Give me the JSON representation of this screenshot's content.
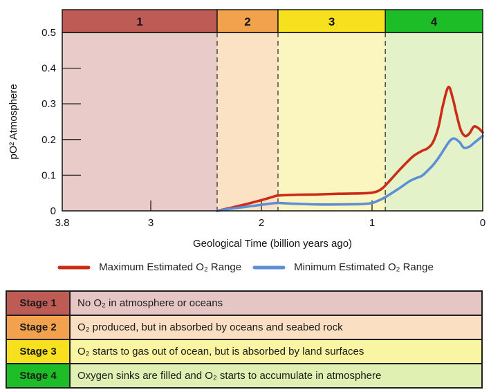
{
  "colors": {
    "boundary_dash": "#56544a",
    "axis": "#1a1a1a"
  },
  "chart_data": {
    "type": "line",
    "title": "",
    "xlabel": "Geological Time (billion years ago)",
    "ylabel": "pO² Atmosphere",
    "x_range": [
      3.8,
      0
    ],
    "y_range": [
      0,
      0.5
    ],
    "grid": false,
    "legend_position": "bottom",
    "x_ticks": [
      {
        "v": 3.8,
        "label": "3.8"
      },
      {
        "v": 3,
        "label": "3"
      },
      {
        "v": 2,
        "label": "2"
      },
      {
        "v": 1,
        "label": "1"
      },
      {
        "v": 0,
        "label": "0"
      }
    ],
    "y_ticks": [
      {
        "v": 0,
        "label": "0"
      },
      {
        "v": 0.1,
        "label": "0.1"
      },
      {
        "v": 0.2,
        "label": "0.2"
      },
      {
        "v": 0.3,
        "label": "0.3"
      },
      {
        "v": 0.4,
        "label": "0.4"
      },
      {
        "v": 0.5,
        "label": "0.5"
      }
    ],
    "stages": [
      {
        "label": "1",
        "from": 3.8,
        "to": 2.4,
        "header_color": "#bf5b55",
        "bg_color": "#e9cbc9"
      },
      {
        "label": "2",
        "from": 2.4,
        "to": 1.85,
        "header_color": "#f2a24d",
        "bg_color": "#fbe2c4"
      },
      {
        "label": "3",
        "from": 1.85,
        "to": 0.88,
        "header_color": "#f7e01e",
        "bg_color": "#fbf5c0"
      },
      {
        "label": "4",
        "from": 0.88,
        "to": 0,
        "header_color": "#1cbd27",
        "bg_color": "#e4f2c9"
      }
    ],
    "series": [
      {
        "name": "Maximum Estimated O₂ Range",
        "color": "#cc2c17",
        "points": [
          [
            2.4,
            0.0
          ],
          [
            2.3,
            0.007
          ],
          [
            2.15,
            0.018
          ],
          [
            2.0,
            0.03
          ],
          [
            1.9,
            0.039
          ],
          [
            1.85,
            0.043
          ],
          [
            1.7,
            0.045
          ],
          [
            1.5,
            0.046
          ],
          [
            1.3,
            0.048
          ],
          [
            1.1,
            0.049
          ],
          [
            1.0,
            0.051
          ],
          [
            0.95,
            0.055
          ],
          [
            0.9,
            0.065
          ],
          [
            0.83,
            0.088
          ],
          [
            0.76,
            0.112
          ],
          [
            0.68,
            0.138
          ],
          [
            0.62,
            0.155
          ],
          [
            0.55,
            0.168
          ],
          [
            0.5,
            0.175
          ],
          [
            0.45,
            0.192
          ],
          [
            0.4,
            0.235
          ],
          [
            0.36,
            0.295
          ],
          [
            0.31,
            0.347
          ],
          [
            0.27,
            0.315
          ],
          [
            0.24,
            0.275
          ],
          [
            0.2,
            0.228
          ],
          [
            0.16,
            0.21
          ],
          [
            0.12,
            0.217
          ],
          [
            0.08,
            0.236
          ],
          [
            0.04,
            0.232
          ],
          [
            0.0,
            0.22
          ]
        ]
      },
      {
        "name": "Minimum Estimated O₂ Range",
        "color": "#5e8fd5",
        "points": [
          [
            2.4,
            0.0
          ],
          [
            2.3,
            0.005
          ],
          [
            2.15,
            0.011
          ],
          [
            2.0,
            0.017
          ],
          [
            1.9,
            0.021
          ],
          [
            1.85,
            0.022
          ],
          [
            1.7,
            0.02
          ],
          [
            1.5,
            0.018
          ],
          [
            1.3,
            0.018
          ],
          [
            1.1,
            0.019
          ],
          [
            1.0,
            0.022
          ],
          [
            0.95,
            0.028
          ],
          [
            0.9,
            0.035
          ],
          [
            0.83,
            0.048
          ],
          [
            0.76,
            0.062
          ],
          [
            0.7,
            0.075
          ],
          [
            0.65,
            0.085
          ],
          [
            0.6,
            0.092
          ],
          [
            0.55,
            0.098
          ],
          [
            0.5,
            0.112
          ],
          [
            0.45,
            0.128
          ],
          [
            0.4,
            0.148
          ],
          [
            0.35,
            0.172
          ],
          [
            0.3,
            0.195
          ],
          [
            0.26,
            0.203
          ],
          [
            0.21,
            0.193
          ],
          [
            0.17,
            0.177
          ],
          [
            0.12,
            0.18
          ],
          [
            0.08,
            0.19
          ],
          [
            0.0,
            0.21
          ]
        ]
      }
    ]
  },
  "table": {
    "rows": [
      {
        "stage": "Stage 1",
        "description": "No O₂ in atmosphere or oceans",
        "stage_color": "#bf5b55",
        "row_color": "#e5c6c4"
      },
      {
        "stage": "Stage 2",
        "description": "O₂ produced, but in absorbed by oceans and seabed rock",
        "stage_color": "#f2a24d",
        "row_color": "#fbdfc2"
      },
      {
        "stage": "Stage 3",
        "description": "O₂ starts to gas out of ocean, but is absorbed by land surfaces",
        "stage_color": "#f7e01e",
        "row_color": "#f9f5a2"
      },
      {
        "stage": "Stage 4",
        "description": "Oxygen sinks are filled and O₂ starts to accumulate in atmosphere",
        "stage_color": "#1cbd27",
        "row_color": "#dff0b2"
      }
    ]
  }
}
